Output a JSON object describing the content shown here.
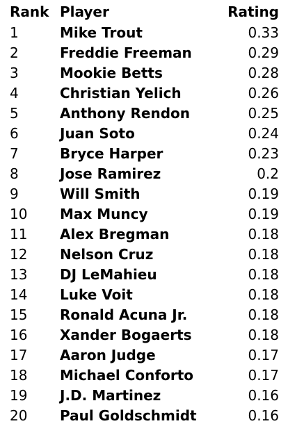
{
  "table": {
    "columns": {
      "rank": "Rank",
      "player": "Player",
      "rating": "Rating"
    },
    "rows": [
      {
        "rank": "1",
        "player": "Mike Trout",
        "rating": "0.33"
      },
      {
        "rank": "2",
        "player": "Freddie Freeman",
        "rating": "0.29"
      },
      {
        "rank": "3",
        "player": "Mookie Betts",
        "rating": "0.28"
      },
      {
        "rank": "4",
        "player": "Christian Yelich",
        "rating": "0.26"
      },
      {
        "rank": "5",
        "player": "Anthony Rendon",
        "rating": "0.25"
      },
      {
        "rank": "6",
        "player": "Juan Soto",
        "rating": "0.24"
      },
      {
        "rank": "7",
        "player": "Bryce Harper",
        "rating": "0.23"
      },
      {
        "rank": "8",
        "player": "Jose Ramirez",
        "rating": "0.2"
      },
      {
        "rank": "9",
        "player": "Will Smith",
        "rating": "0.19"
      },
      {
        "rank": "10",
        "player": "Max Muncy",
        "rating": "0.19"
      },
      {
        "rank": "11",
        "player": "Alex Bregman",
        "rating": "0.18"
      },
      {
        "rank": "12",
        "player": "Nelson Cruz",
        "rating": "0.18"
      },
      {
        "rank": "13",
        "player": "DJ LeMahieu",
        "rating": "0.18"
      },
      {
        "rank": "14",
        "player": "Luke Voit",
        "rating": "0.18"
      },
      {
        "rank": "15",
        "player": "Ronald Acuna Jr.",
        "rating": "0.18"
      },
      {
        "rank": "16",
        "player": "Xander Bogaerts",
        "rating": "0.18"
      },
      {
        "rank": "17",
        "player": "Aaron Judge",
        "rating": "0.17"
      },
      {
        "rank": "18",
        "player": "Michael Conforto",
        "rating": "0.17"
      },
      {
        "rank": "19",
        "player": "J.D. Martinez",
        "rating": "0.16"
      },
      {
        "rank": "20",
        "player": "Paul Goldschmidt",
        "rating": "0.16"
      }
    ]
  }
}
